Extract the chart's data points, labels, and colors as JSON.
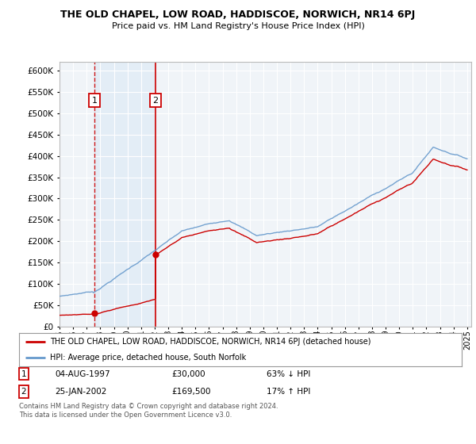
{
  "title": "THE OLD CHAPEL, LOW ROAD, HADDISCOE, NORWICH, NR14 6PJ",
  "subtitle": "Price paid vs. HM Land Registry's House Price Index (HPI)",
  "red_label": "THE OLD CHAPEL, LOW ROAD, HADDISCOE, NORWICH, NR14 6PJ (detached house)",
  "blue_label": "HPI: Average price, detached house, South Norfolk",
  "transaction1_date": "04-AUG-1997",
  "transaction1_price": 30000,
  "transaction1_note": "63% ↓ HPI",
  "transaction2_date": "25-JAN-2002",
  "transaction2_price": 169500,
  "transaction2_note": "17% ↑ HPI",
  "footer": "Contains HM Land Registry data © Crown copyright and database right 2024.\nThis data is licensed under the Open Government Licence v3.0.",
  "ylim": [
    0,
    620000
  ],
  "yticks": [
    0,
    50000,
    100000,
    150000,
    200000,
    250000,
    300000,
    350000,
    400000,
    450000,
    500000,
    550000,
    600000
  ],
  "bg_color": "#ffffff",
  "plot_bg_color": "#f0f4f8",
  "grid_color": "#ffffff",
  "red_color": "#cc0000",
  "blue_color": "#6699cc",
  "highlight_bg": "#d8e8f5",
  "t1": 1997.583,
  "t2": 2002.042,
  "p1": 30000,
  "p2": 169500
}
